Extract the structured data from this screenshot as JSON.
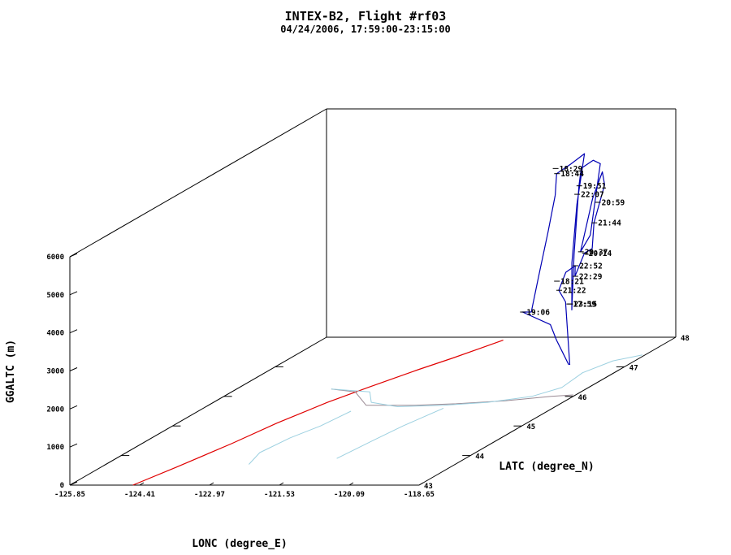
{
  "colors": {
    "track": "#0000b4",
    "coast": "#e00000",
    "water": "#9cd0e0",
    "border": "#9a8a94",
    "axes": "#000000"
  },
  "chart_data": {
    "type": "line",
    "projection": "3d",
    "title": "INTEX-B2, Flight #rf03",
    "subtitle": "04/24/2006, 17:59:00-23:15:00",
    "xlabel": "LONC (degree_E)",
    "ylabel": "LATC (degree_N)",
    "zlabel": "GGALTC (m)",
    "xlim": [
      -125.85,
      -118.65
    ],
    "ylim": [
      43,
      48
    ],
    "zlim": [
      0,
      6000
    ],
    "x_ticks": [
      "-125.85",
      "-124.41",
      "-122.97",
      "-121.53",
      "-120.09",
      "-118.65"
    ],
    "y_ticks": [
      "43",
      "44",
      "45",
      "46",
      "47",
      "48"
    ],
    "z_ticks": [
      "0",
      "1000",
      "2000",
      "3000",
      "4000",
      "5000",
      "6000"
    ],
    "time_labels": [
      {
        "t": "18:29",
        "lon": -120.5,
        "lat": 47.4,
        "alt": 4900
      },
      {
        "t": "18:44",
        "lon": -120.45,
        "lat": 47.38,
        "alt": 4780
      },
      {
        "t": "19:06",
        "lon": -121.28,
        "lat": 47.5,
        "alt": 1050
      },
      {
        "t": "19:51",
        "lon": -119.8,
        "lat": 47.2,
        "alt": 4600
      },
      {
        "t": "22:07",
        "lon": -119.95,
        "lat": 47.3,
        "alt": 4300
      },
      {
        "t": "20:59",
        "lon": -119.1,
        "lat": 46.9,
        "alt": 4400
      },
      {
        "t": "21:44",
        "lon": -119.12,
        "lat": 46.85,
        "alt": 3900
      },
      {
        "t": "20:37",
        "lon": -119.45,
        "lat": 46.9,
        "alt": 3100
      },
      {
        "t": "20:14",
        "lon": -119.05,
        "lat": 46.6,
        "alt": 3300
      },
      {
        "t": "22:52",
        "lon": -119.4,
        "lat": 46.75,
        "alt": 2850
      },
      {
        "t": "22:29",
        "lon": -119.3,
        "lat": 46.65,
        "alt": 2650
      },
      {
        "t": "18:21",
        "lon": -120.05,
        "lat": 47.0,
        "alt": 2250
      },
      {
        "t": "21:22",
        "lon": -119.95,
        "lat": 46.95,
        "alt": 2050
      },
      {
        "t": "17:59",
        "lon": -119.32,
        "lat": 46.55,
        "alt": 2000
      },
      {
        "t": "23:15",
        "lon": -119.3,
        "lat": 46.55,
        "alt": 2000
      }
    ],
    "series": [
      {
        "kind": "flight-track",
        "points": [
          [
            -119.32,
            46.55,
            400
          ],
          [
            -119.7,
            46.8,
            500
          ],
          [
            -120.05,
            47.0,
            700
          ],
          [
            -120.6,
            47.4,
            800
          ],
          [
            -121.28,
            47.5,
            1050
          ],
          [
            -121.1,
            47.5,
            1050
          ],
          [
            -120.9,
            47.45,
            2000
          ],
          [
            -120.7,
            47.45,
            3200
          ],
          [
            -120.5,
            47.4,
            4200
          ],
          [
            -120.45,
            47.38,
            4780
          ],
          [
            -120.2,
            47.42,
            5000
          ],
          [
            -119.95,
            47.45,
            5250
          ],
          [
            -120.0,
            47.35,
            4000
          ],
          [
            -120.05,
            47.3,
            2500
          ],
          [
            -120.0,
            47.25,
            1300
          ],
          [
            -119.9,
            47.2,
            2800
          ],
          [
            -119.8,
            47.2,
            4600
          ],
          [
            -119.7,
            47.15,
            5100
          ],
          [
            -119.4,
            47.1,
            5350
          ],
          [
            -119.2,
            47.05,
            5300
          ],
          [
            -119.3,
            46.95,
            3500
          ],
          [
            -119.45,
            46.9,
            3100
          ],
          [
            -119.2,
            46.9,
            4500
          ],
          [
            -119.0,
            46.9,
            5200
          ],
          [
            -118.9,
            46.85,
            4900
          ],
          [
            -119.12,
            46.85,
            3900
          ],
          [
            -119.05,
            46.75,
            3300
          ],
          [
            -119.05,
            46.6,
            3300
          ],
          [
            -119.3,
            46.65,
            2650
          ],
          [
            -119.4,
            46.75,
            2850
          ],
          [
            -119.7,
            46.85,
            2600
          ],
          [
            -119.95,
            46.95,
            2050
          ],
          [
            -119.6,
            46.75,
            1900
          ],
          [
            -119.3,
            46.55,
            400
          ]
        ]
      },
      {
        "kind": "coastline",
        "points": [
          [
            -124.55,
            43.0,
            0
          ],
          [
            -124.3,
            43.6,
            0
          ],
          [
            -124.0,
            44.4,
            0
          ],
          [
            -123.8,
            45.1,
            0
          ],
          [
            -123.5,
            45.8,
            0
          ],
          [
            -123.2,
            46.3,
            0
          ],
          [
            -122.8,
            46.9,
            0
          ],
          [
            -122.5,
            47.3,
            0
          ],
          [
            -122.3,
            47.6,
            0
          ],
          [
            -122.1,
            47.9,
            0
          ]
        ]
      },
      {
        "kind": "state-border",
        "points": [
          [
            -123.9,
            46.25,
            0
          ],
          [
            -123.3,
            46.15,
            0
          ],
          [
            -122.6,
            45.7,
            0
          ],
          [
            -121.6,
            45.7,
            0
          ],
          [
            -120.8,
            45.75,
            0
          ],
          [
            -119.9,
            45.85,
            0
          ],
          [
            -119.1,
            46.0,
            0
          ],
          [
            -118.7,
            46.05,
            0
          ]
        ]
      },
      {
        "kind": "rivers",
        "points": [
          [
            -123.9,
            46.25,
            0
          ],
          [
            -123.0,
            46.15,
            0
          ],
          [
            -122.6,
            45.8,
            0
          ],
          [
            -121.9,
            45.65,
            0
          ],
          [
            -121.0,
            45.7,
            0
          ],
          [
            -120.2,
            45.8,
            0
          ],
          [
            -119.5,
            46.0,
            0
          ],
          [
            -119.2,
            46.3,
            0
          ],
          [
            -119.3,
            46.8,
            0
          ],
          [
            -119.1,
            47.2,
            0
          ],
          [
            -118.7,
            47.4,
            0
          ]
        ]
      },
      {
        "kind": "willamette",
        "points": [
          [
            -122.7,
            45.5,
            0
          ],
          [
            -122.8,
            45.0,
            0
          ],
          [
            -123.0,
            44.6,
            0
          ],
          [
            -123.1,
            44.1,
            0
          ],
          [
            -122.9,
            43.7,
            0
          ]
        ]
      },
      {
        "kind": "deschutes",
        "points": [
          [
            -120.9,
            45.6,
            0
          ],
          [
            -121.1,
            45.0,
            0
          ],
          [
            -121.2,
            44.5,
            0
          ],
          [
            -121.3,
            43.9,
            0
          ]
        ]
      }
    ]
  }
}
